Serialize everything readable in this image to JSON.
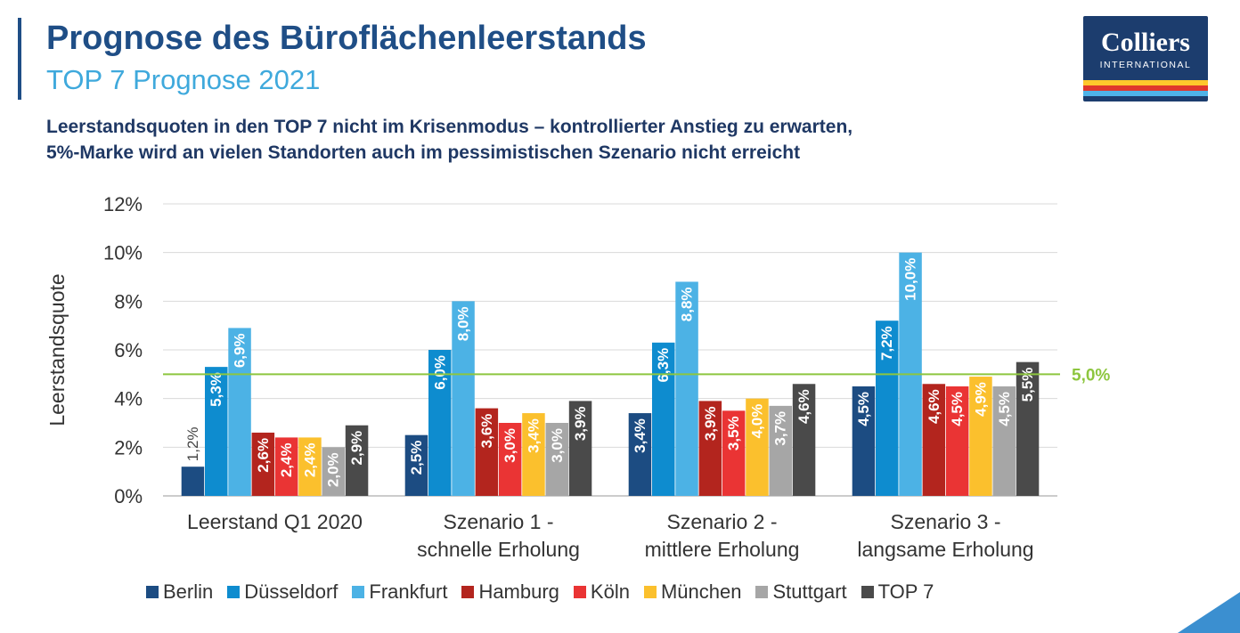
{
  "header": {
    "title": "Prognose des Büroflächenleerstands",
    "subtitle": "TOP 7 Prognose 2021",
    "headline_line1": "Leerstandsquoten in den TOP 7 nicht im Krisenmodus – kontrollierter Anstieg zu erwarten,",
    "headline_line2": "5%-Marke wird an vielen Standorten auch im pessimistischen Szenario nicht erreicht"
  },
  "logo": {
    "name": "Colliers",
    "sub": "INTERNATIONAL",
    "colors": {
      "background": "#1c3d6e",
      "stripes": [
        "#ffc72c",
        "#e0362c",
        "#4fb3e8"
      ]
    }
  },
  "chart_data": {
    "type": "bar",
    "ylabel": "Leerstandsquote",
    "ylim": [
      0,
      12
    ],
    "yticks": [
      0,
      2,
      4,
      6,
      8,
      10,
      12
    ],
    "ytick_labels": [
      "0%",
      "2%",
      "4%",
      "6%",
      "8%",
      "10%",
      "12%"
    ],
    "grid": true,
    "legend_position": "bottom",
    "categories": [
      [
        "Leerstand Q1 2020"
      ],
      [
        "Szenario 1 -",
        "schnelle Erholung"
      ],
      [
        "Szenario 2 -",
        "mittlere Erholung"
      ],
      [
        "Szenario 3 -",
        "langsame Erholung"
      ]
    ],
    "reference_line": {
      "value": 5.0,
      "label": "5,0%",
      "color": "#8dc63f"
    },
    "series": [
      {
        "name": "Berlin",
        "color": "#1c4c82",
        "values": [
          1.2,
          2.5,
          3.4,
          4.5
        ],
        "labels": [
          "1,2%",
          "2,5%",
          "3,4%",
          "4,5%"
        ]
      },
      {
        "name": "Düsseldorf",
        "color": "#0e8ccf",
        "values": [
          5.3,
          6.0,
          6.3,
          7.2
        ],
        "labels": [
          "5,3%",
          "6,0%",
          "6,3%",
          "7,2%"
        ]
      },
      {
        "name": "Frankfurt",
        "color": "#4cb2e5",
        "values": [
          6.9,
          8.0,
          8.8,
          10.0
        ],
        "labels": [
          "6,9%",
          "8,0%",
          "8,8%",
          "10,0%"
        ]
      },
      {
        "name": "Hamburg",
        "color": "#b3251e",
        "values": [
          2.6,
          3.6,
          3.9,
          4.6
        ],
        "labels": [
          "2,6%",
          "3,6%",
          "3,9%",
          "4,6%"
        ]
      },
      {
        "name": "Köln",
        "color": "#ea3434",
        "values": [
          2.4,
          3.0,
          3.5,
          4.5
        ],
        "labels": [
          "2,4%",
          "3,0%",
          "3,5%",
          "4,5%"
        ]
      },
      {
        "name": "München",
        "color": "#fbc02d",
        "values": [
          2.4,
          3.4,
          4.0,
          4.9
        ],
        "labels": [
          "2,4%",
          "3,4%",
          "4,0%",
          "4,9%"
        ]
      },
      {
        "name": "Stuttgart",
        "color": "#a6a6a6",
        "values": [
          2.0,
          3.0,
          3.7,
          4.5
        ],
        "labels": [
          "2,0%",
          "3,0%",
          "3,7%",
          "4,5%"
        ]
      },
      {
        "name": "TOP 7",
        "color": "#4a4a4a",
        "values": [
          2.9,
          3.9,
          4.6,
          5.5
        ],
        "labels": [
          "2,9%",
          "3,9%",
          "4,6%",
          "5,5%"
        ]
      }
    ]
  }
}
